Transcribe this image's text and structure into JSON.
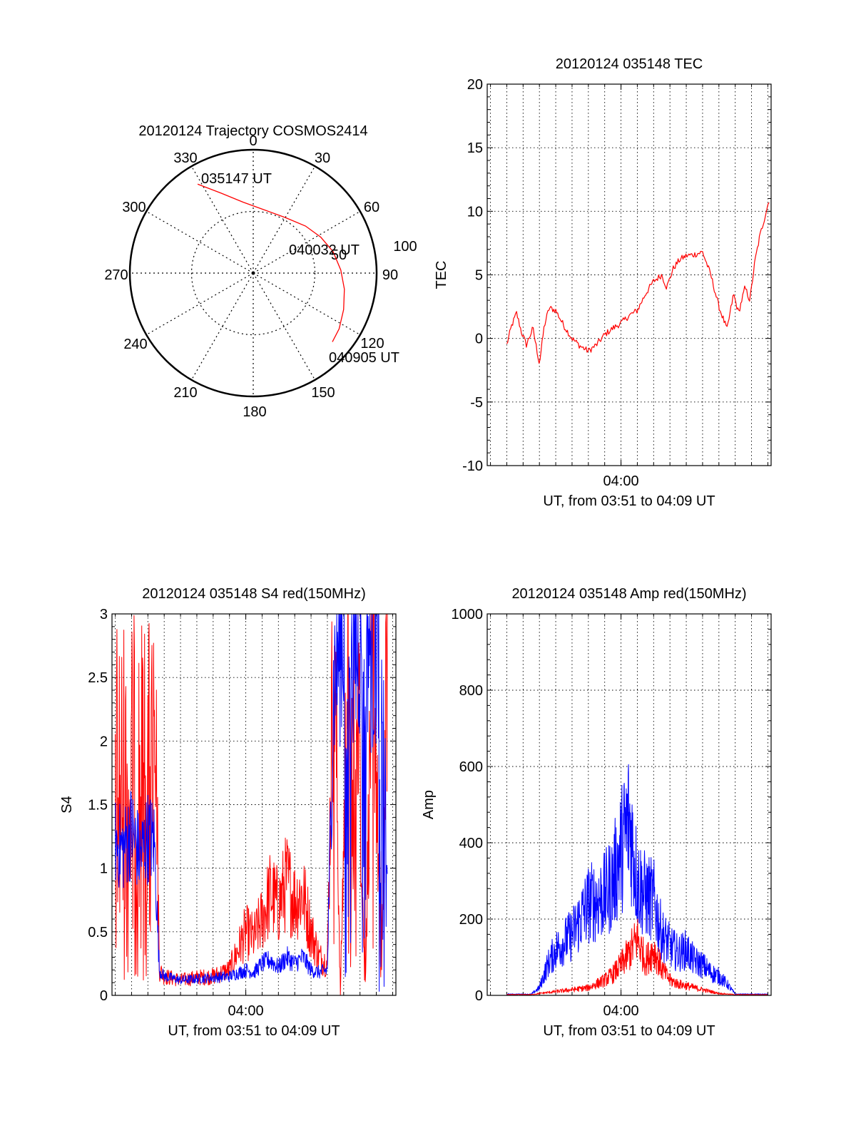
{
  "colors": {
    "red_series": "#ff0000",
    "blue_series": "#0000ff",
    "axis": "#000000"
  },
  "polar": {
    "title": "20120124 Trajectory COSMOS2414",
    "angle_labels": [
      "0",
      "30",
      "60",
      "90",
      "120",
      "150",
      "180",
      "210",
      "240",
      "270",
      "300",
      "330"
    ],
    "inner_ring_label": "50",
    "outer_ring_label": "100",
    "start_label": "035147 UT",
    "mid_label": "040032 UT",
    "end_label": "040905 UT"
  },
  "chart_data": [
    {
      "type": "polar",
      "title": "20120124 Trajectory COSMOS2414",
      "ring_labels": [
        "50",
        "100"
      ],
      "angle_ticks_deg": [
        0,
        30,
        60,
        90,
        120,
        150,
        180,
        210,
        240,
        270,
        300,
        330
      ],
      "series": [
        {
          "color": "red",
          "points": [
            {
              "az": 328,
              "r": 85
            },
            {
              "az": 338,
              "r": 70
            },
            {
              "az": 352,
              "r": 58
            },
            {
              "az": 10,
              "r": 52
            },
            {
              "az": 30,
              "r": 52
            },
            {
              "az": 48,
              "r": 57
            },
            {
              "az": 62,
              "r": 62
            },
            {
              "az": 75,
              "r": 67
            },
            {
              "az": 88,
              "r": 71
            },
            {
              "az": 100,
              "r": 75
            },
            {
              "az": 112,
              "r": 79
            },
            {
              "az": 123,
              "r": 83
            },
            {
              "az": 131,
              "r": 85
            }
          ]
        }
      ],
      "annotations": [
        {
          "text": "035147 UT",
          "az": 328,
          "r": 85
        },
        {
          "text": "040032 UT",
          "az": 75,
          "r": 67
        },
        {
          "text": "040905 UT",
          "az": 131,
          "r": 85
        }
      ]
    },
    {
      "type": "line",
      "title": "20120124 035148 TEC",
      "xlabel": "UT, from 03:51 to 04:09 UT",
      "ylabel": "TEC",
      "x_tick_labels": [
        "04:00"
      ],
      "xlim_min": [
        231.8,
        249.2
      ],
      "ylim": [
        -10,
        20
      ],
      "y_ticks": [
        -10,
        -5,
        0,
        5,
        10,
        15,
        20
      ],
      "grid": true,
      "series": [
        {
          "color": "red",
          "x_min": [
            233.0,
            233.3,
            233.6,
            233.9,
            234.2,
            234.6,
            235.0,
            235.3,
            235.6,
            236.0,
            236.5,
            237.0,
            237.5,
            238.0,
            238.5,
            239.0,
            239.5,
            240.0,
            240.5,
            241.0,
            241.5,
            242.0,
            242.5,
            242.8,
            243.2,
            243.6,
            244.0,
            244.5,
            245.0,
            245.5,
            246.0,
            246.5,
            246.9,
            247.2,
            247.6,
            247.9,
            248.2,
            248.5,
            248.8,
            249.1
          ],
          "y": [
            -0.5,
            1.0,
            2.0,
            0.5,
            -0.5,
            0.8,
            -2.0,
            1.0,
            2.4,
            2.2,
            1.0,
            0.0,
            -0.6,
            -1.0,
            -0.5,
            0.3,
            0.8,
            1.2,
            1.8,
            2.2,
            3.5,
            4.5,
            5.0,
            4.0,
            5.5,
            6.2,
            6.5,
            6.6,
            6.8,
            5.0,
            2.5,
            0.7,
            3.5,
            2.0,
            4.0,
            3.0,
            6.0,
            8.0,
            9.5,
            11.0
          ]
        }
      ]
    },
    {
      "type": "line",
      "title": "20120124 035148 S4 red(150MHz)",
      "xlabel": "UT, from 03:51 to 04:09 UT",
      "ylabel": "S4",
      "x_tick_labels": [
        "04:00"
      ],
      "xlim_min": [
        231.8,
        249.2
      ],
      "ylim": [
        0,
        3
      ],
      "y_ticks": [
        "0",
        "0.5",
        "1",
        "1.5",
        "2",
        "2.5",
        "3"
      ],
      "grid": true,
      "series": [
        {
          "color": "red",
          "x_min": [
            232.0,
            232.5,
            233.0,
            233.5,
            234.0,
            234.4,
            234.7,
            235.0,
            236.0,
            237.0,
            238.0,
            239.0,
            240.0,
            240.5,
            241.0,
            241.5,
            242.0,
            242.5,
            243.0,
            243.5,
            244.0,
            244.5,
            245.0,
            245.4,
            245.8,
            246.3,
            246.8,
            247.3,
            247.8,
            248.3,
            248.7
          ],
          "y": [
            3.0,
            3.0,
            3.0,
            3.0,
            3.0,
            3.0,
            0.2,
            0.15,
            0.12,
            0.14,
            0.15,
            0.2,
            0.5,
            0.45,
            0.6,
            0.8,
            0.7,
            0.9,
            0.75,
            0.8,
            0.5,
            0.3,
            0.25,
            3.0,
            0.0,
            3.0,
            3.0,
            0.0,
            3.0,
            0.0,
            3.0
          ]
        },
        {
          "color": "blue",
          "x_min": [
            232.0,
            232.5,
            233.0,
            233.5,
            234.0,
            234.4,
            234.7,
            235.0,
            236.0,
            237.0,
            238.0,
            239.0,
            240.0,
            240.5,
            241.0,
            241.5,
            242.0,
            242.5,
            243.0,
            243.5,
            244.0,
            244.5,
            245.0,
            245.4,
            245.8,
            246.3,
            246.8,
            247.3,
            247.8,
            248.3,
            248.7
          ],
          "y": [
            1.2,
            1.15,
            1.3,
            1.1,
            1.25,
            1.2,
            0.2,
            0.15,
            0.12,
            0.13,
            0.14,
            0.15,
            0.2,
            0.18,
            0.25,
            0.28,
            0.22,
            0.3,
            0.25,
            0.3,
            0.2,
            0.18,
            0.2,
            2.5,
            2.8,
            3.0,
            2.7,
            3.0,
            2.6,
            3.0,
            2.9
          ]
        }
      ]
    },
    {
      "type": "line",
      "title": "20120124 035148 Amp red(150MHz)",
      "xlabel": "UT, from 03:51 to 04:09 UT",
      "ylabel": "Amp",
      "x_tick_labels": [
        "04:00"
      ],
      "xlim_min": [
        231.8,
        249.2
      ],
      "ylim": [
        0,
        1000
      ],
      "y_ticks": [
        0,
        200,
        400,
        600,
        800,
        1000
      ],
      "grid": true,
      "series": [
        {
          "color": "blue",
          "x_min": [
            233.0,
            234.5,
            235.0,
            235.5,
            236.0,
            236.5,
            237.0,
            237.5,
            238.0,
            238.5,
            239.0,
            239.5,
            240.0,
            240.5,
            241.0,
            241.5,
            242.0,
            242.5,
            243.0,
            243.5,
            244.0,
            244.5,
            245.0,
            245.5,
            246.0,
            246.5,
            247.0,
            247.5,
            248.0,
            249.0
          ],
          "y": [
            3,
            3,
            20,
            80,
            120,
            140,
            160,
            200,
            240,
            250,
            260,
            300,
            380,
            460,
            300,
            260,
            250,
            160,
            130,
            110,
            120,
            90,
            80,
            60,
            50,
            30,
            3,
            3,
            3,
            3
          ]
        },
        {
          "color": "red",
          "x_min": [
            233.0,
            234.5,
            235.0,
            236.0,
            237.0,
            238.0,
            239.0,
            239.5,
            240.0,
            240.5,
            241.0,
            241.5,
            242.0,
            242.5,
            243.0,
            243.5,
            244.0,
            244.5,
            245.0,
            245.5,
            246.0,
            247.0,
            249.0
          ],
          "y": [
            2,
            2,
            5,
            10,
            15,
            20,
            40,
            55,
            80,
            110,
            150,
            90,
            120,
            70,
            40,
            30,
            25,
            20,
            15,
            10,
            5,
            2,
            2
          ]
        }
      ]
    }
  ]
}
